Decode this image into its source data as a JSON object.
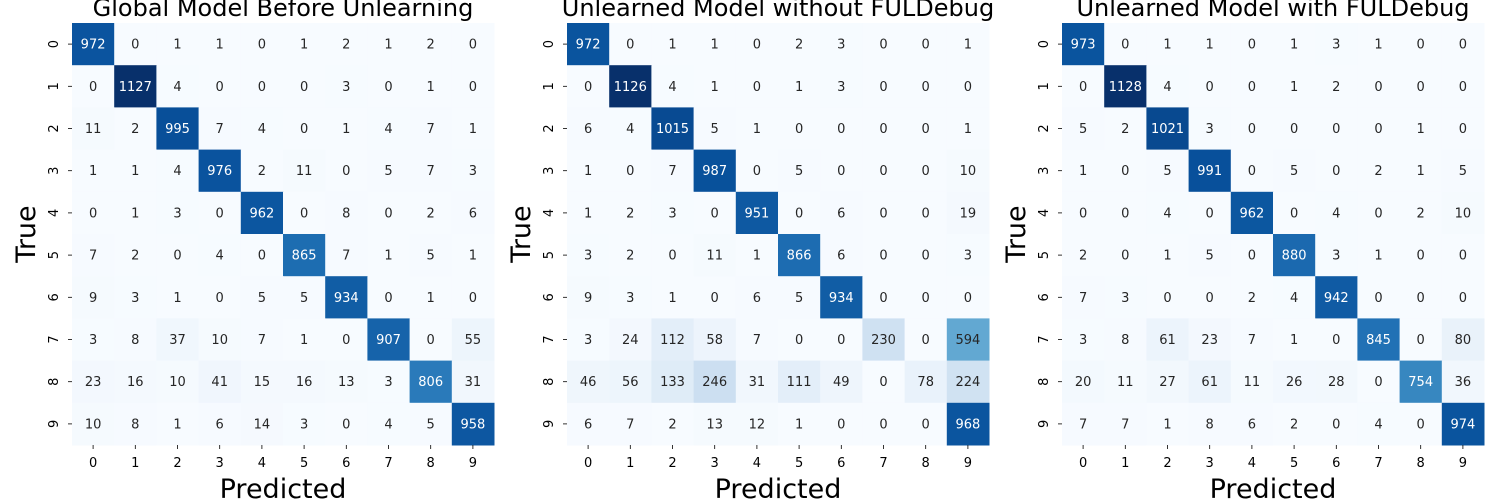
{
  "chart_data": [
    {
      "type": "heatmap",
      "title": "Global Model Before Unlearning",
      "xlabel": "Predicted",
      "ylabel": "True",
      "x_categories": [
        "0",
        "1",
        "2",
        "3",
        "4",
        "5",
        "6",
        "7",
        "8",
        "9"
      ],
      "y_categories": [
        "0",
        "1",
        "2",
        "3",
        "4",
        "5",
        "6",
        "7",
        "8",
        "9"
      ],
      "colormap": "Blues",
      "colorbar": false,
      "values": [
        [
          972,
          0,
          1,
          1,
          0,
          1,
          2,
          1,
          2,
          0
        ],
        [
          0,
          1127,
          4,
          0,
          0,
          0,
          3,
          0,
          1,
          0
        ],
        [
          11,
          2,
          995,
          7,
          4,
          0,
          1,
          4,
          7,
          1
        ],
        [
          1,
          1,
          4,
          976,
          2,
          11,
          0,
          5,
          7,
          3
        ],
        [
          0,
          1,
          3,
          0,
          962,
          0,
          8,
          0,
          2,
          6
        ],
        [
          7,
          2,
          0,
          4,
          0,
          865,
          7,
          1,
          5,
          1
        ],
        [
          9,
          3,
          1,
          0,
          5,
          5,
          934,
          0,
          1,
          0
        ],
        [
          3,
          8,
          37,
          10,
          7,
          1,
          0,
          907,
          0,
          55
        ],
        [
          23,
          16,
          10,
          41,
          15,
          16,
          13,
          3,
          806,
          31
        ],
        [
          10,
          8,
          1,
          6,
          14,
          3,
          0,
          4,
          5,
          958
        ]
      ]
    },
    {
      "type": "heatmap",
      "title": "Unlearned Model without FULDebug",
      "xlabel": "Predicted",
      "ylabel": "True",
      "x_categories": [
        "0",
        "1",
        "2",
        "3",
        "4",
        "5",
        "6",
        "7",
        "8",
        "9"
      ],
      "y_categories": [
        "0",
        "1",
        "2",
        "3",
        "4",
        "5",
        "6",
        "7",
        "8",
        "9"
      ],
      "colormap": "Blues",
      "colorbar": false,
      "values": [
        [
          972,
          0,
          1,
          1,
          0,
          2,
          3,
          0,
          0,
          1
        ],
        [
          0,
          1126,
          4,
          1,
          0,
          1,
          3,
          0,
          0,
          0
        ],
        [
          6,
          4,
          1015,
          5,
          1,
          0,
          0,
          0,
          0,
          1
        ],
        [
          1,
          0,
          7,
          987,
          0,
          5,
          0,
          0,
          0,
          10
        ],
        [
          1,
          2,
          3,
          0,
          951,
          0,
          6,
          0,
          0,
          19
        ],
        [
          3,
          2,
          0,
          11,
          1,
          866,
          6,
          0,
          0,
          3
        ],
        [
          9,
          3,
          1,
          0,
          6,
          5,
          934,
          0,
          0,
          0
        ],
        [
          3,
          24,
          112,
          58,
          7,
          0,
          0,
          230,
          0,
          594
        ],
        [
          46,
          56,
          133,
          246,
          31,
          111,
          49,
          0,
          78,
          224
        ],
        [
          6,
          7,
          2,
          13,
          12,
          1,
          0,
          0,
          0,
          968
        ]
      ]
    },
    {
      "type": "heatmap",
      "title": "Unlearned Model with FULDebug",
      "xlabel": "Predicted",
      "ylabel": "True",
      "x_categories": [
        "0",
        "1",
        "2",
        "3",
        "4",
        "5",
        "6",
        "7",
        "8",
        "9"
      ],
      "y_categories": [
        "0",
        "1",
        "2",
        "3",
        "4",
        "5",
        "6",
        "7",
        "8",
        "9"
      ],
      "colormap": "Blues",
      "colorbar": false,
      "values": [
        [
          973,
          0,
          1,
          1,
          0,
          1,
          3,
          1,
          0,
          0
        ],
        [
          0,
          1128,
          4,
          0,
          0,
          1,
          2,
          0,
          0,
          0
        ],
        [
          5,
          2,
          1021,
          3,
          0,
          0,
          0,
          0,
          1,
          0
        ],
        [
          1,
          0,
          5,
          991,
          0,
          5,
          0,
          2,
          1,
          5
        ],
        [
          0,
          0,
          4,
          0,
          962,
          0,
          4,
          0,
          2,
          10
        ],
        [
          2,
          0,
          1,
          5,
          0,
          880,
          3,
          1,
          0,
          0
        ],
        [
          7,
          3,
          0,
          0,
          2,
          4,
          942,
          0,
          0,
          0
        ],
        [
          3,
          8,
          61,
          23,
          7,
          1,
          0,
          845,
          0,
          80
        ],
        [
          20,
          11,
          27,
          61,
          11,
          26,
          28,
          0,
          754,
          36
        ],
        [
          7,
          7,
          1,
          8,
          6,
          2,
          0,
          4,
          0,
          974
        ]
      ]
    }
  ]
}
